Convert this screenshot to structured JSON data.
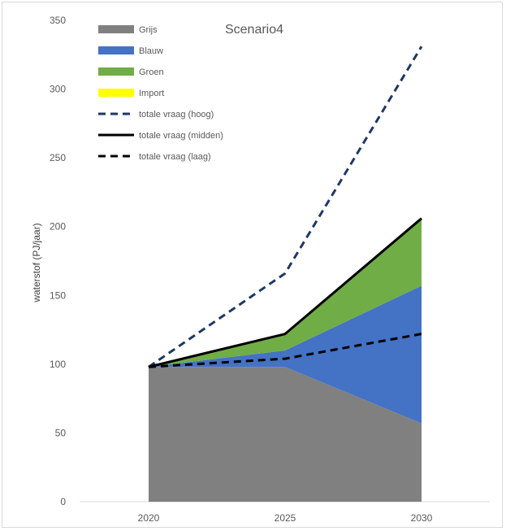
{
  "chart_data": {
    "type": "area",
    "title": "Scenario4",
    "xlabel": "",
    "ylabel": "waterstof (PJ/jaar)",
    "categories": [
      "2020",
      "2025",
      "2030"
    ],
    "ylim": [
      0,
      350
    ],
    "yticks": [
      0,
      50,
      100,
      150,
      200,
      250,
      300,
      350
    ],
    "grid": false,
    "legend_position": "top-left",
    "stacked_series": [
      {
        "name": "Grijs",
        "values": [
          98,
          98,
          57
        ],
        "color": "#808080"
      },
      {
        "name": "Blauw",
        "values": [
          0,
          12,
          100
        ],
        "color": "#4472C4"
      },
      {
        "name": "Groen",
        "values": [
          0,
          12,
          49
        ],
        "color": "#70AD47"
      },
      {
        "name": "Import",
        "values": [
          0,
          0,
          0
        ],
        "color": "#FFFF00"
      }
    ],
    "line_series": [
      {
        "name": "totale vraag (hoog)",
        "values": [
          98,
          166,
          331
        ],
        "color": "#1F3864",
        "style": "dashed"
      },
      {
        "name": "totale vraag (midden)",
        "values": [
          98,
          122,
          206
        ],
        "color": "#000000",
        "style": "solid"
      },
      {
        "name": "totale vraag (laag)",
        "values": [
          98,
          104,
          122
        ],
        "color": "#000000",
        "style": "dashed"
      }
    ]
  }
}
